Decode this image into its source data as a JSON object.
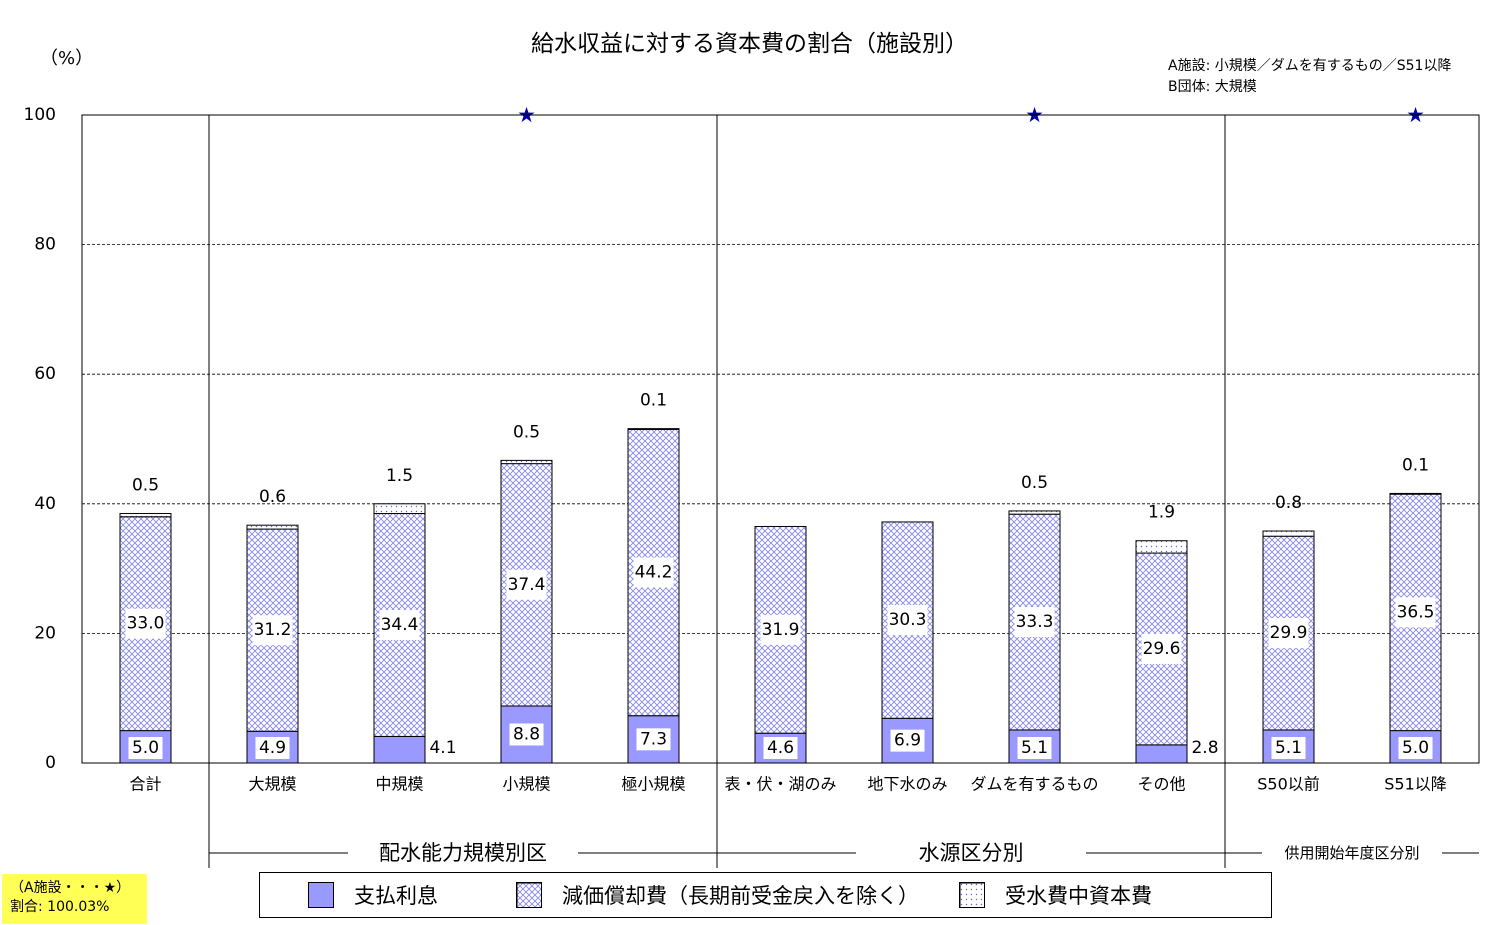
{
  "chart_data": {
    "type": "bar",
    "stacked": true,
    "title": "給水収益に対する資本費の割合（施設別）",
    "ylabel": "（%）",
    "ylim": [
      0,
      100
    ],
    "yticks": [
      0,
      20,
      40,
      60,
      80,
      100
    ],
    "grid": true,
    "categories": [
      "合計",
      "大規模",
      "中規模",
      "小規模",
      "極小規模",
      "表・伏・湖のみ",
      "地下水のみ",
      "ダムを有するもの",
      "その他",
      "S50以前",
      "S51以降"
    ],
    "series": [
      {
        "name": "支払利息",
        "values": [
          5.0,
          4.9,
          4.1,
          8.8,
          7.3,
          4.6,
          6.9,
          5.1,
          2.8,
          5.1,
          5.0
        ],
        "labels": [
          "5.0",
          "4.9",
          "4.1",
          "8.8",
          "7.3",
          "4.6",
          "6.9",
          "5.1",
          "2.8",
          "5.1",
          "5.0"
        ],
        "color": "#9999ff"
      },
      {
        "name": "減価償却費（長期前受金戻入を除く）",
        "values": [
          33.0,
          31.2,
          34.4,
          37.4,
          44.2,
          31.9,
          30.3,
          33.3,
          29.6,
          29.9,
          36.5
        ],
        "labels": [
          "33.0",
          "31.2",
          "34.4",
          "37.4",
          "44.2",
          "31.9",
          "30.3",
          "33.3",
          "29.6",
          "29.9",
          "36.5"
        ],
        "color": "#9999ff"
      },
      {
        "name": "受水費中資本費",
        "values": [
          0.5,
          0.6,
          1.5,
          0.5,
          0.1,
          0,
          0,
          0.5,
          1.9,
          0.8,
          0.1
        ],
        "labels": [
          "0.5",
          "0.6",
          "1.5",
          "0.5",
          "0.1",
          "",
          "",
          "0.5",
          "1.9",
          "0.8",
          "0.1"
        ],
        "color": "#9999ff"
      }
    ],
    "groups": [
      {
        "label": "配水能力規模別区",
        "start": 1,
        "end": 4
      },
      {
        "label": "水源区分別",
        "start": 5,
        "end": 8
      },
      {
        "label": "供用開始年度区分別",
        "start": 9,
        "end": 10
      }
    ],
    "star_marker": "★",
    "star_categories": [
      3,
      7,
      10
    ],
    "star_value": 100.03,
    "annotation_lines": [
      "A施設: 小規模／ダムを有するもの／S51以降",
      "B団体: 大規模"
    ],
    "legend_position": "bottom"
  },
  "note": {
    "line1": "（A施設・・・★）",
    "line2": "割合: 100.03%"
  }
}
